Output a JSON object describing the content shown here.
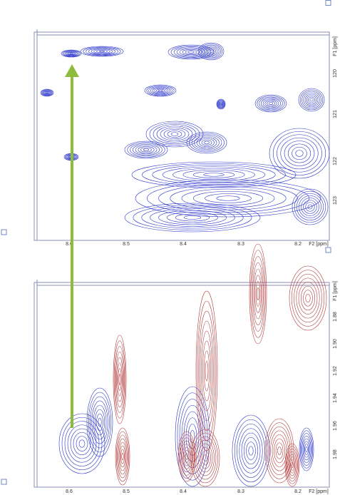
{
  "top_panel": {
    "x_axis_label": "F2 [ppm]",
    "y_axis_label": "F1 [ppm]",
    "x_tick_labels": [
      "8.6",
      "8.5",
      "8.4",
      "8.3",
      "8.2"
    ],
    "y_tick_labels": [
      "120",
      "121",
      "122",
      "123"
    ]
  },
  "bottom_panel": {
    "x_axis_label": "F2 [ppm]",
    "y_axis_label": "F1 [ppm]",
    "x_tick_labels": [
      "8.6",
      "8.5",
      "8.4",
      "8.3",
      "8.2"
    ],
    "y_tick_labels": [
      "1.88",
      "1.90",
      "1.92",
      "1.94",
      "1.96",
      "1.98"
    ]
  }
}
